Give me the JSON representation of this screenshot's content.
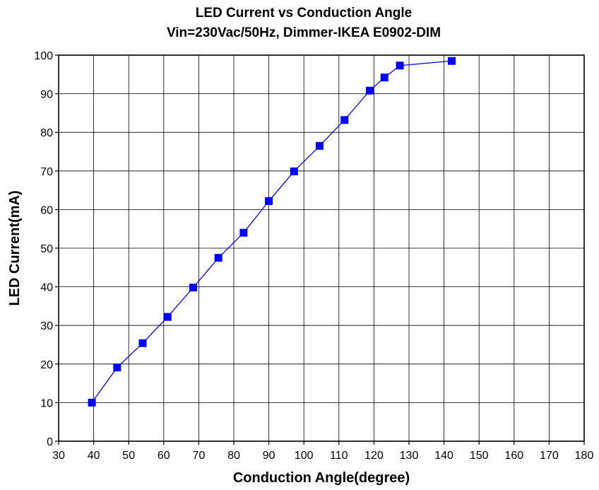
{
  "chart_data": {
    "type": "line",
    "title": "LED Current vs Conduction Angle",
    "subtitle": "Vin=230Vac/50Hz, Dimmer-IKEA E0902-DIM",
    "xlabel": "Conduction Angle(degree)",
    "ylabel": "LED Current(mA)",
    "xlim": [
      30,
      180
    ],
    "ylim": [
      0,
      100
    ],
    "x_ticks": [
      "30",
      "40",
      "50",
      "60",
      "70",
      "80",
      "90",
      "100",
      "110",
      "120",
      "130",
      "140",
      "150",
      "160",
      "170",
      "180"
    ],
    "y_ticks": [
      "0",
      "10",
      "20",
      "30",
      "40",
      "50",
      "60",
      "70",
      "80",
      "90",
      "100"
    ],
    "grid": true,
    "marker": "square",
    "series": [
      {
        "color": "#0000ff",
        "x": [
          39.5,
          46.7,
          54.0,
          61.1,
          68.4,
          75.6,
          82.8,
          90.0,
          97.2,
          104.5,
          111.6,
          118.8,
          123.0,
          127.4,
          142.2
        ],
        "y": [
          10.0,
          19.1,
          25.4,
          32.2,
          39.8,
          47.5,
          54.0,
          62.2,
          69.9,
          76.5,
          83.2,
          90.8,
          94.2,
          97.3,
          98.5
        ]
      }
    ]
  }
}
